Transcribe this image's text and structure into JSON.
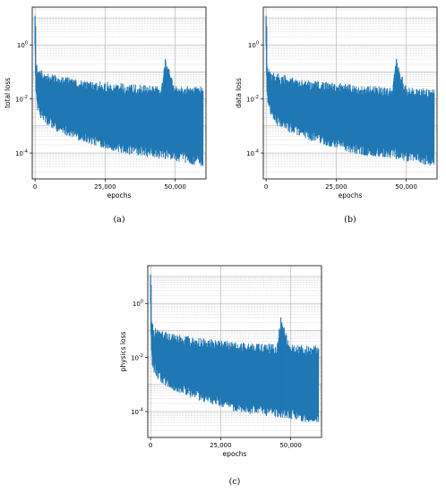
{
  "chart_data": [
    {
      "type": "line",
      "caption": "(a)",
      "xlabel": "epochs",
      "ylabel": "total loss",
      "xlim": [
        -1000,
        61000
      ],
      "ylim": [
        1.1e-05,
        25
      ],
      "yscale": "log",
      "xticks": [
        0,
        25000,
        50000
      ],
      "xtick_labels": [
        "0",
        "25,000",
        "50,000"
      ],
      "yticks": [
        0.0001,
        0.01,
        1
      ],
      "ytick_labels": [
        "10^-4",
        "10^-2",
        "10^0"
      ],
      "grid": true,
      "series": [
        {
          "color": "#1f77b4",
          "x": [
            0,
            300,
            600,
            1000,
            2000,
            4000,
            6000,
            8000,
            10000,
            15000,
            20000,
            25000,
            30000,
            35000,
            40000,
            45000,
            46500,
            50000,
            55000,
            60000
          ],
          "upper": [
            12,
            0.3,
            0.2,
            0.15,
            0.12,
            0.1,
            0.09,
            0.08,
            0.07,
            0.06,
            0.05,
            0.045,
            0.04,
            0.035,
            0.035,
            0.03,
            0.3,
            0.03,
            0.03,
            0.03
          ],
          "lower": [
            1,
            0.02,
            0.005,
            0.003,
            0.002,
            0.001,
            0.0008,
            0.0006,
            0.0005,
            0.0003,
            0.0002,
            0.00015,
            0.0001,
            8e-05,
            7e-05,
            6e-05,
            6e-05,
            5e-05,
            4e-05,
            3e-05
          ]
        }
      ]
    },
    {
      "type": "line",
      "caption": "(b)",
      "xlabel": "epochs",
      "ylabel": "data loss",
      "xlim": [
        -1000,
        61000
      ],
      "ylim": [
        1.1e-05,
        25
      ],
      "yscale": "log",
      "xticks": [
        0,
        25000,
        50000
      ],
      "xtick_labels": [
        "0",
        "25,000",
        "50,000"
      ],
      "yticks": [
        0.0001,
        0.01,
        1
      ],
      "ytick_labels": [
        "10^-4",
        "10^-2",
        "10^0"
      ],
      "grid": true,
      "series": [
        {
          "color": "#1f77b4",
          "x": [
            0,
            300,
            600,
            1000,
            2000,
            4000,
            6000,
            8000,
            10000,
            15000,
            20000,
            25000,
            30000,
            35000,
            40000,
            45000,
            46500,
            50000,
            55000,
            60000
          ],
          "upper": [
            12,
            0.25,
            0.18,
            0.14,
            0.11,
            0.09,
            0.08,
            0.07,
            0.06,
            0.05,
            0.045,
            0.04,
            0.035,
            0.03,
            0.03,
            0.028,
            0.3,
            0.028,
            0.025,
            0.025
          ],
          "lower": [
            1,
            0.02,
            0.005,
            0.003,
            0.002,
            0.001,
            0.0008,
            0.0006,
            0.0005,
            0.0003,
            0.0002,
            0.00015,
            0.0001,
            8e-05,
            7e-05,
            6e-05,
            6e-05,
            5e-05,
            4e-05,
            3e-05
          ]
        }
      ]
    },
    {
      "type": "line",
      "caption": "(c)",
      "xlabel": "epochs",
      "ylabel": "physics loss",
      "xlim": [
        -1000,
        61000
      ],
      "ylim": [
        1.1e-05,
        25
      ],
      "yscale": "log",
      "xticks": [
        0,
        25000,
        50000
      ],
      "xtick_labels": [
        "0",
        "25,000",
        "50,000"
      ],
      "yticks": [
        0.0001,
        0.01,
        1
      ],
      "ytick_labels": [
        "10^-4",
        "10^-2",
        "10^0"
      ],
      "grid": true,
      "series": [
        {
          "color": "#1f77b4",
          "x": [
            0,
            300,
            600,
            1000,
            2000,
            4000,
            6000,
            8000,
            10000,
            15000,
            20000,
            25000,
            30000,
            35000,
            40000,
            45000,
            46500,
            50000,
            55000,
            60000
          ],
          "upper": [
            12,
            0.3,
            0.2,
            0.15,
            0.12,
            0.1,
            0.09,
            0.08,
            0.07,
            0.06,
            0.05,
            0.045,
            0.04,
            0.035,
            0.035,
            0.03,
            0.3,
            0.03,
            0.03,
            0.03
          ],
          "lower": [
            1,
            0.02,
            0.005,
            0.003,
            0.002,
            0.001,
            0.0008,
            0.0006,
            0.0005,
            0.0003,
            0.0002,
            0.00015,
            0.0001,
            8e-05,
            7e-05,
            6e-05,
            6e-05,
            5e-05,
            4e-05,
            3e-05
          ]
        }
      ]
    }
  ]
}
